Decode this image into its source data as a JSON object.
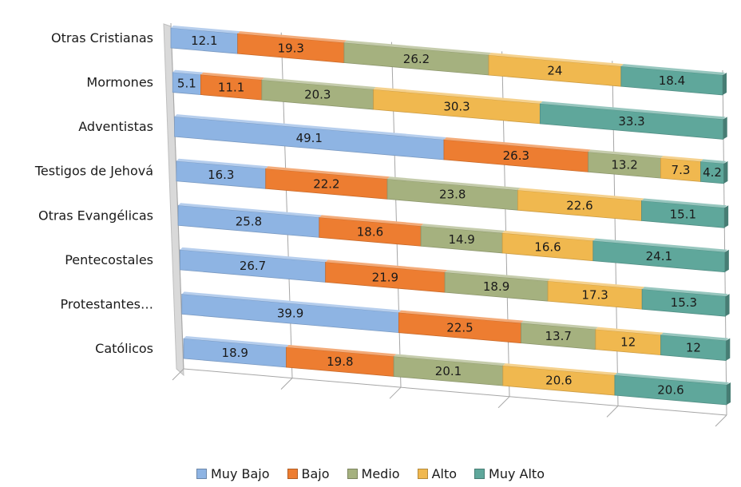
{
  "chart_data": {
    "type": "bar",
    "orientation": "horizontal",
    "stacked": "percent",
    "style": "3d",
    "categories": [
      "Otras Cristianas",
      "Mormones",
      "Adventistas",
      "Testigos de Jehová",
      "Otras Evangélicas",
      "Pentecostales",
      "Protestantes…",
      "Católicos"
    ],
    "series": [
      {
        "name": "Muy Bajo",
        "color": "#8eb4e3",
        "values": [
          12.1,
          5.1,
          49.1,
          16.3,
          25.8,
          26.7,
          39.9,
          18.9
        ]
      },
      {
        "name": "Bajo",
        "color": "#ed7d31",
        "values": [
          19.3,
          11.1,
          26.3,
          22.2,
          18.6,
          21.9,
          22.5,
          19.8
        ]
      },
      {
        "name": "Medio",
        "color": "#a5b17f",
        "values": [
          26.2,
          20.3,
          13.2,
          23.8,
          14.9,
          18.9,
          13.7,
          20.1
        ]
      },
      {
        "name": "Alto",
        "color": "#f0b84f",
        "values": [
          24,
          30.3,
          7.3,
          22.6,
          16.6,
          17.3,
          12,
          20.6
        ]
      },
      {
        "name": "Muy Alto",
        "color": "#5fa79b",
        "values": [
          18.4,
          33.3,
          4.2,
          15.1,
          24.1,
          15.3,
          12,
          20.6
        ]
      }
    ],
    "legend_position": "bottom",
    "grid": true
  }
}
